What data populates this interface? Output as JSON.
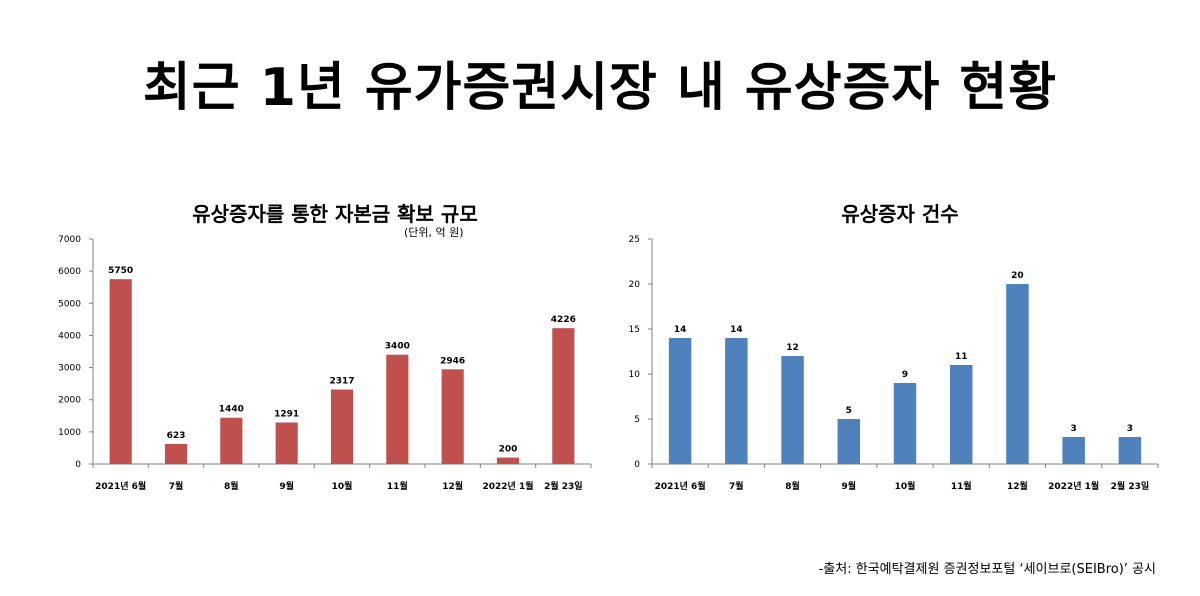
{
  "title": "최근 1년 유가증권시장 내 유상증자 현황",
  "source": "-출처: 한국예탁결제원 증권정보포털 ‘세이브로(SEIBro)’ 공시",
  "chart_data": [
    {
      "type": "bar",
      "title": "유상증자를 통한 자본금 확보 규모",
      "unit": "(단위, 억 원)",
      "categories": [
        "2021년 6월",
        "7월",
        "8월",
        "9월",
        "10월",
        "11월",
        "12월",
        "2022년 1월",
        "2월 23일"
      ],
      "values": [
        5750,
        623,
        1440,
        1291,
        2317,
        3400,
        2946,
        200,
        4226
      ],
      "ylim": [
        0,
        7000
      ],
      "yticks": [
        0,
        1000,
        2000,
        3000,
        4000,
        5000,
        6000,
        7000
      ],
      "color": "#c0504d",
      "grid": false,
      "legend": "none"
    },
    {
      "type": "bar",
      "title": "유상증자 건수",
      "categories": [
        "2021년 6월",
        "7월",
        "8월",
        "9월",
        "10월",
        "11월",
        "12월",
        "2022년 1월",
        "2월 23일"
      ],
      "values": [
        14,
        14,
        12,
        5,
        9,
        11,
        20,
        3,
        3
      ],
      "ylim": [
        0,
        25
      ],
      "yticks": [
        0,
        5,
        10,
        15,
        20,
        25
      ],
      "color": "#4f81bd",
      "grid": false,
      "legend": "none"
    }
  ]
}
